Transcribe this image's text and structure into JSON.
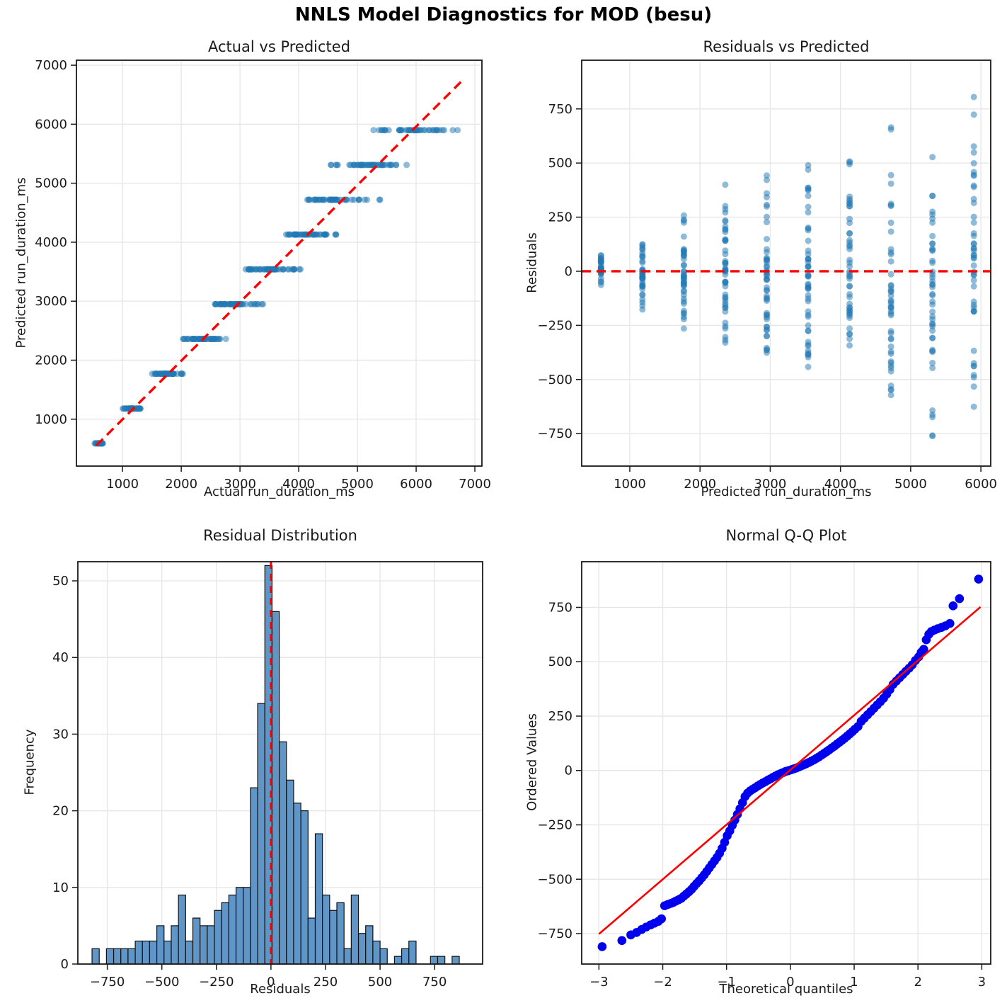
{
  "suptitle": "NNLS Model Diagnostics for MOD (besu)",
  "colors": {
    "scatter_point": "#1f77b4",
    "histogram_bar": "#5f95c7",
    "histogram_bar_edge": "#111111",
    "qq_point": "#0000ee",
    "reference_line": "#ff0000",
    "grid": "#e7e7e7",
    "axis": "#1a1a1a",
    "background": "#ffffff"
  },
  "chart_data": [
    {
      "type": "scatter",
      "title": "Actual vs Predicted",
      "xlabel": "Actual run_duration_ms",
      "ylabel": "Predicted run_duration_ms",
      "xlim": [
        215,
        7120
      ],
      "ylim": [
        205,
        7085
      ],
      "xticks": [
        1000,
        2000,
        3000,
        4000,
        5000,
        6000,
        7000
      ],
      "yticks": [
        1000,
        2000,
        3000,
        4000,
        5000,
        6000,
        7000
      ],
      "grid": true,
      "identity_line": {
        "x1": 555,
        "y1": 555,
        "x2": 6800,
        "y2": 6755,
        "style": "dashed",
        "width": 3.4
      },
      "marker": {
        "radius": 4.5,
        "opacity": 0.5
      },
      "bands": [
        {
          "predicted": 590,
          "actual_min": 510,
          "actual_max": 685,
          "count": 30
        },
        {
          "predicted": 1180,
          "actual_min": 1000,
          "actual_max": 1345,
          "count": 38
        },
        {
          "predicted": 1770,
          "actual_min": 1500,
          "actual_max": 2030,
          "count": 42
        },
        {
          "predicted": 2360,
          "actual_min": 2025,
          "actual_max": 2700,
          "count": 45
        },
        {
          "predicted": 2950,
          "actual_min": 2525,
          "actual_max": 3410,
          "count": 48
        },
        {
          "predicted": 3540,
          "actual_min": 3030,
          "actual_max": 4030,
          "count": 50
        },
        {
          "predicted": 4130,
          "actual_min": 3535,
          "actual_max": 4665,
          "count": 45
        },
        {
          "predicted": 4720,
          "actual_min": 4060,
          "actual_max": 5170,
          "count": 43
        },
        {
          "predicted": 5310,
          "actual_min": 4515,
          "actual_max": 5945,
          "count": 45
        },
        {
          "predicted": 5900,
          "actual_min": 5115,
          "actual_max": 6770,
          "count": 45
        }
      ],
      "extra_points": [
        [
          2760,
          2360
        ],
        [
          5375,
          4720
        ],
        [
          5385,
          4720
        ]
      ]
    },
    {
      "type": "scatter",
      "title": "Residuals vs Predicted",
      "xlabel": "Predicted run_duration_ms",
      "ylabel": "Residuals",
      "xlim": [
        315,
        6140
      ],
      "ylim": [
        -900,
        975
      ],
      "xticks": [
        1000,
        2000,
        3000,
        4000,
        5000,
        6000
      ],
      "yticks": [
        -750,
        -500,
        -250,
        0,
        250,
        500,
        750
      ],
      "grid": true,
      "zero_line": {
        "y": 0,
        "style": "dashed",
        "width": 3.4
      },
      "marker": {
        "radius": 4.5,
        "opacity": 0.5
      },
      "residual_columns": [
        {
          "predicted": 590,
          "residual_min": -80,
          "residual_max": 95
        },
        {
          "predicted": 1180,
          "residual_min": -180,
          "residual_max": 165
        },
        {
          "predicted": 1770,
          "residual_min": -270,
          "residual_max": 260
        },
        {
          "predicted": 2360,
          "residual_min": -335,
          "residual_max": 400
        },
        {
          "predicted": 2950,
          "residual_min": -425,
          "residual_max": 460
        },
        {
          "predicted": 3540,
          "residual_min": -510,
          "residual_max": 490
        },
        {
          "predicted": 4130,
          "residual_min": -595,
          "residual_max": 535
        },
        {
          "predicted": 4720,
          "residual_min": -660,
          "residual_max": 665
        },
        {
          "predicted": 5310,
          "residual_min": -795,
          "residual_max": 635
        },
        {
          "predicted": 5900,
          "residual_min": -785,
          "residual_max": 870
        }
      ]
    },
    {
      "type": "histogram",
      "title": "Residual Distribution",
      "xlabel": "Residuals",
      "ylabel": "Frequency",
      "xlim": [
        -885,
        970
      ],
      "ylim": [
        0,
        52.5
      ],
      "xticks": [
        -750,
        -500,
        -250,
        0,
        250,
        500,
        750
      ],
      "yticks": [
        0,
        10,
        20,
        30,
        40,
        50
      ],
      "grid": true,
      "bin_start": -820,
      "bin_width": 33,
      "counts": [
        2,
        0,
        2,
        2,
        2,
        2,
        3,
        3,
        3,
        5,
        3,
        5,
        9,
        3,
        6,
        5,
        5,
        7,
        8,
        9,
        10,
        10,
        23,
        34,
        52,
        46,
        29,
        24,
        21,
        20,
        6,
        17,
        9,
        7,
        8,
        2,
        9,
        4,
        5,
        3,
        2,
        0,
        1,
        2,
        3,
        0,
        0,
        1,
        1,
        0,
        1
      ],
      "zero_line": {
        "x": 0,
        "style": "dashed",
        "width": 3
      }
    },
    {
      "type": "scatter",
      "title": "Normal Q-Q Plot",
      "xlabel": "Theoretical quantiles",
      "ylabel": "Ordered Values",
      "xlim": [
        -3.27,
        3.14
      ],
      "ylim": [
        -890,
        960
      ],
      "xticks": [
        -3,
        -2,
        -1,
        0,
        1,
        2,
        3
      ],
      "yticks": [
        -750,
        -500,
        -250,
        0,
        250,
        500,
        750
      ],
      "grid": true,
      "fit_line": {
        "x1": -3.0,
        "y1": -752,
        "x2": 2.98,
        "y2": 752,
        "width": 2.6
      },
      "marker": {
        "radius": 6.3,
        "opacity": 1
      },
      "points": [
        [
          -2.95,
          -810
        ],
        [
          -2.64,
          -782
        ],
        [
          -2.5,
          -756
        ],
        [
          -2.41,
          -745
        ],
        [
          -2.33,
          -731
        ],
        [
          -2.26,
          -720
        ],
        [
          -2.19,
          -710
        ],
        [
          -2.13,
          -702
        ],
        [
          -2.07,
          -694
        ],
        [
          -2.02,
          -682
        ],
        [
          -1.97,
          -622
        ],
        [
          -1.92,
          -616
        ],
        [
          -1.87,
          -611
        ],
        [
          -1.83,
          -606
        ],
        [
          -1.79,
          -600
        ],
        [
          -1.75,
          -594
        ],
        [
          -1.71,
          -588
        ],
        [
          -1.67,
          -578
        ],
        [
          -1.63,
          -568
        ],
        [
          -1.59,
          -558
        ],
        [
          -1.55,
          -547
        ],
        [
          -1.51,
          -533
        ],
        [
          -1.47,
          -520
        ],
        [
          -1.43,
          -508
        ],
        [
          -1.39,
          -494
        ],
        [
          -1.35,
          -480
        ],
        [
          -1.31,
          -464
        ],
        [
          -1.27,
          -448
        ],
        [
          -1.23,
          -432
        ],
        [
          -1.19,
          -416
        ],
        [
          -1.15,
          -400
        ],
        [
          -1.11,
          -381
        ],
        [
          -1.07,
          -358
        ],
        [
          -1.03,
          -330
        ],
        [
          -0.99,
          -300
        ],
        [
          -0.95,
          -278
        ],
        [
          -0.91,
          -252
        ],
        [
          -0.87,
          -228
        ],
        [
          -0.83,
          -202
        ],
        [
          -0.79,
          -176
        ],
        [
          -0.75,
          -148
        ],
        [
          -0.71,
          -120
        ],
        [
          -0.67,
          -104
        ],
        [
          -0.63,
          -94
        ],
        [
          -0.59,
          -86
        ],
        [
          -0.55,
          -79
        ],
        [
          -0.51,
          -71
        ],
        [
          -0.47,
          -64
        ],
        [
          -0.43,
          -57
        ],
        [
          -0.39,
          -51
        ],
        [
          -0.35,
          -44
        ],
        [
          -0.31,
          -38
        ],
        [
          -0.27,
          -31
        ],
        [
          -0.23,
          -25
        ],
        [
          -0.19,
          -19
        ],
        [
          -0.15,
          -14
        ],
        [
          -0.11,
          -9
        ],
        [
          -0.07,
          -4
        ],
        [
          -0.03,
          -1
        ],
        [
          0.01,
          3
        ],
        [
          0.05,
          7
        ],
        [
          0.09,
          11
        ],
        [
          0.13,
          16
        ],
        [
          0.17,
          21
        ],
        [
          0.21,
          26
        ],
        [
          0.25,
          31
        ],
        [
          0.29,
          37
        ],
        [
          0.33,
          43
        ],
        [
          0.37,
          49
        ],
        [
          0.41,
          56
        ],
        [
          0.45,
          63
        ],
        [
          0.49,
          71
        ],
        [
          0.53,
          79
        ],
        [
          0.57,
          87
        ],
        [
          0.61,
          95
        ],
        [
          0.65,
          104
        ],
        [
          0.69,
          112
        ],
        [
          0.73,
          121
        ],
        [
          0.77,
          130
        ],
        [
          0.81,
          139
        ],
        [
          0.85,
          148
        ],
        [
          0.89,
          158
        ],
        [
          0.93,
          168
        ],
        [
          0.97,
          178
        ],
        [
          1.01,
          189
        ],
        [
          1.06,
          202
        ],
        [
          1.11,
          226
        ],
        [
          1.16,
          241
        ],
        [
          1.21,
          256
        ],
        [
          1.26,
          271
        ],
        [
          1.31,
          286
        ],
        [
          1.36,
          301
        ],
        [
          1.41,
          316
        ],
        [
          1.46,
          332
        ],
        [
          1.51,
          351
        ],
        [
          1.56,
          372
        ],
        [
          1.61,
          396
        ],
        [
          1.66,
          411
        ],
        [
          1.71,
          426
        ],
        [
          1.76,
          441
        ],
        [
          1.81,
          456
        ],
        [
          1.86,
          470
        ],
        [
          1.91,
          486
        ],
        [
          1.96,
          506
        ],
        [
          2.01,
          522
        ],
        [
          2.05,
          543
        ],
        [
          2.09,
          557
        ],
        [
          2.13,
          601
        ],
        [
          2.17,
          626
        ],
        [
          2.21,
          639
        ],
        [
          2.26,
          646
        ],
        [
          2.31,
          652
        ],
        [
          2.37,
          658
        ],
        [
          2.43,
          665
        ],
        [
          2.5,
          676
        ],
        [
          2.55,
          757
        ],
        [
          2.65,
          790
        ],
        [
          2.95,
          880
        ]
      ]
    }
  ]
}
